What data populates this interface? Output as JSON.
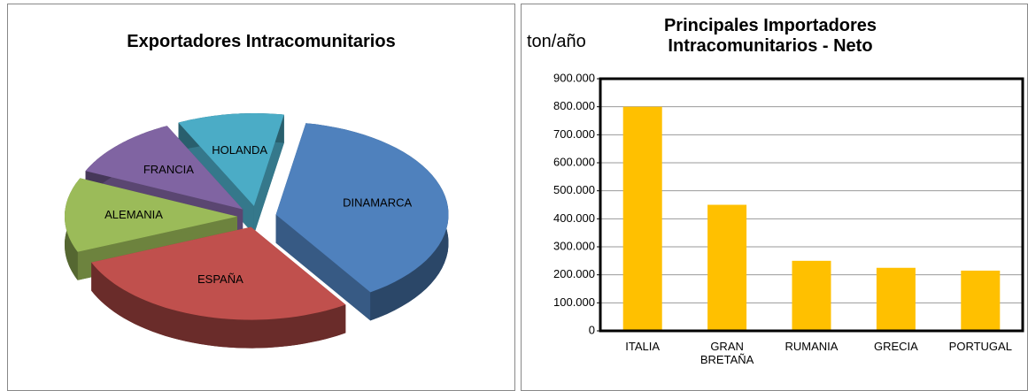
{
  "chart_data": [
    {
      "type": "pie",
      "title": "Exportadores Intracomunitarios",
      "categories": [
        "DINAMARCA",
        "ESPAÑA",
        "ALEMANIA",
        "FRANCIA",
        "HOLANDA"
      ],
      "values": [
        38,
        28,
        13,
        11,
        10
      ],
      "colors": [
        "#4f81bd",
        "#c0504d",
        "#9bbb59",
        "#8064a2",
        "#4bacc6"
      ]
    },
    {
      "type": "bar",
      "title": "Principales Importadores Intracomunitarios - Neto",
      "ylabel": "ton/año",
      "categories": [
        "ITALIA",
        "GRAN BRETAÑA",
        "RUMANIA",
        "GRECIA",
        "PORTUGAL"
      ],
      "values": [
        800000,
        450000,
        250000,
        225000,
        215000
      ],
      "color": "#ffc000",
      "ylim": [
        0,
        900000
      ],
      "yticks": [
        0,
        {
          "value": 100000,
          "label": "100.000"
        },
        {
          "value": 200000,
          "label": "200.000"
        },
        {
          "value": 300000,
          "label": "300.000"
        },
        {
          "value": 400000,
          "label": "400.000"
        },
        {
          "value": 500000,
          "label": "500.000"
        },
        {
          "value": 600000,
          "label": "600.000"
        },
        {
          "value": 700000,
          "label": "700.000"
        },
        {
          "value": 800000,
          "label": "800.000"
        },
        {
          "value": 900000,
          "label": "900.000"
        }
      ],
      "grid": true
    }
  ]
}
